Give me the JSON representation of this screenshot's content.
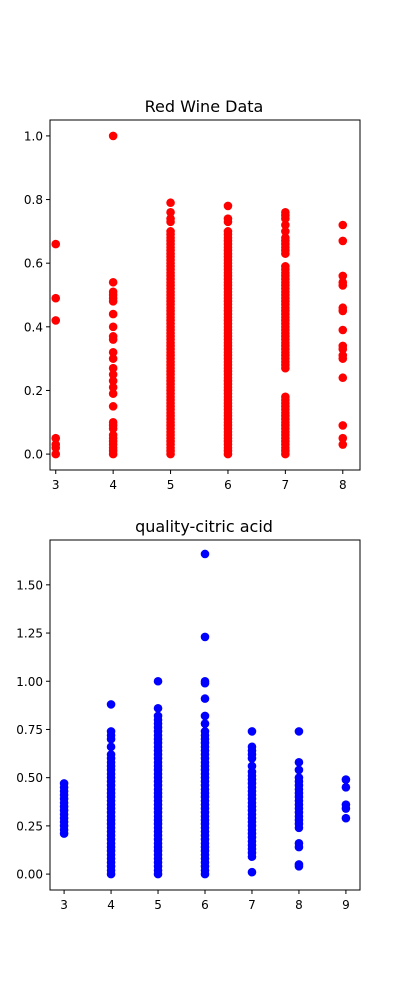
{
  "chart_data": [
    {
      "type": "scatter",
      "title": "Red Wine Data",
      "xlabel": "",
      "ylabel": "",
      "xlim": [
        2.9,
        8.3
      ],
      "ylim": [
        -0.05,
        1.05
      ],
      "xticks": [
        3,
        4,
        5,
        6,
        7,
        8
      ],
      "yticks": [
        0.0,
        0.2,
        0.4,
        0.6,
        0.8,
        1.0
      ],
      "ytick_labels": [
        "0.0",
        "0.2",
        "0.4",
        "0.6",
        "0.8",
        "1.0"
      ],
      "grid": false,
      "color": "#ff0000",
      "points": [
        {
          "x": 3,
          "ys": [
            0.0,
            0.02,
            0.03,
            0.05,
            0.42,
            0.49,
            0.66
          ]
        },
        {
          "x": 4,
          "ys": [
            0.0,
            0.01,
            0.02,
            0.03,
            0.04,
            0.05,
            0.06,
            0.08,
            0.09,
            0.1,
            0.15,
            0.19,
            0.21,
            0.23,
            0.25,
            0.27,
            0.3,
            0.32,
            0.36,
            0.37,
            0.4,
            0.44,
            0.48,
            0.49,
            0.5,
            0.51,
            0.54,
            1.0
          ]
        },
        {
          "x": 5,
          "ys": [
            0.0,
            0.01,
            0.02,
            0.03,
            0.04,
            0.05,
            0.06,
            0.07,
            0.08,
            0.09,
            0.1,
            0.11,
            0.12,
            0.13,
            0.14,
            0.15,
            0.16,
            0.17,
            0.18,
            0.19,
            0.2,
            0.21,
            0.22,
            0.23,
            0.24,
            0.25,
            0.26,
            0.27,
            0.28,
            0.29,
            0.3,
            0.31,
            0.32,
            0.33,
            0.34,
            0.35,
            0.36,
            0.37,
            0.38,
            0.39,
            0.4,
            0.41,
            0.42,
            0.43,
            0.44,
            0.45,
            0.46,
            0.47,
            0.48,
            0.49,
            0.5,
            0.51,
            0.52,
            0.53,
            0.54,
            0.55,
            0.56,
            0.57,
            0.58,
            0.59,
            0.6,
            0.61,
            0.62,
            0.63,
            0.64,
            0.65,
            0.66,
            0.67,
            0.68,
            0.69,
            0.7,
            0.73,
            0.74,
            0.76,
            0.79
          ]
        },
        {
          "x": 6,
          "ys": [
            0.0,
            0.01,
            0.02,
            0.03,
            0.04,
            0.05,
            0.06,
            0.07,
            0.08,
            0.09,
            0.1,
            0.11,
            0.12,
            0.13,
            0.14,
            0.15,
            0.16,
            0.17,
            0.18,
            0.19,
            0.2,
            0.21,
            0.22,
            0.23,
            0.24,
            0.25,
            0.26,
            0.27,
            0.28,
            0.29,
            0.3,
            0.31,
            0.32,
            0.33,
            0.34,
            0.35,
            0.36,
            0.37,
            0.38,
            0.39,
            0.4,
            0.41,
            0.42,
            0.43,
            0.44,
            0.45,
            0.46,
            0.47,
            0.48,
            0.49,
            0.5,
            0.51,
            0.52,
            0.53,
            0.54,
            0.55,
            0.56,
            0.57,
            0.58,
            0.59,
            0.6,
            0.61,
            0.62,
            0.63,
            0.64,
            0.65,
            0.66,
            0.67,
            0.68,
            0.69,
            0.7,
            0.73,
            0.74,
            0.78
          ]
        },
        {
          "x": 7,
          "ys": [
            0.0,
            0.01,
            0.02,
            0.03,
            0.04,
            0.05,
            0.06,
            0.07,
            0.08,
            0.09,
            0.1,
            0.11,
            0.12,
            0.13,
            0.14,
            0.15,
            0.16,
            0.17,
            0.18,
            0.27,
            0.28,
            0.29,
            0.3,
            0.31,
            0.32,
            0.33,
            0.34,
            0.35,
            0.36,
            0.37,
            0.38,
            0.39,
            0.4,
            0.41,
            0.42,
            0.43,
            0.44,
            0.45,
            0.46,
            0.47,
            0.48,
            0.49,
            0.5,
            0.51,
            0.52,
            0.53,
            0.54,
            0.55,
            0.56,
            0.57,
            0.58,
            0.59,
            0.63,
            0.64,
            0.65,
            0.66,
            0.67,
            0.68,
            0.7,
            0.72,
            0.74,
            0.75,
            0.76
          ]
        },
        {
          "x": 8,
          "ys": [
            0.03,
            0.05,
            0.09,
            0.24,
            0.3,
            0.31,
            0.33,
            0.34,
            0.39,
            0.45,
            0.46,
            0.53,
            0.54,
            0.56,
            0.67,
            0.72
          ]
        }
      ]
    },
    {
      "type": "scatter",
      "title": "quality-citric acid",
      "xlabel": "",
      "ylabel": "",
      "xlim": [
        2.7,
        9.3
      ],
      "ylim": [
        -0.0825,
        1.7325
      ],
      "xticks": [
        3,
        4,
        5,
        6,
        7,
        8,
        9
      ],
      "yticks": [
        0.0,
        0.25,
        0.5,
        0.75,
        1.0,
        1.25,
        1.5
      ],
      "ytick_labels": [
        "0.00",
        "0.25",
        "0.50",
        "0.75",
        "1.00",
        "1.25",
        "1.50"
      ],
      "grid": false,
      "color": "#0000ff",
      "points": [
        {
          "x": 3,
          "ys": [
            0.21,
            0.23,
            0.25,
            0.27,
            0.29,
            0.31,
            0.33,
            0.35,
            0.37,
            0.39,
            0.41,
            0.43,
            0.45,
            0.47
          ]
        },
        {
          "x": 4,
          "ys": [
            0.0,
            0.02,
            0.04,
            0.06,
            0.08,
            0.1,
            0.12,
            0.14,
            0.16,
            0.18,
            0.2,
            0.22,
            0.24,
            0.26,
            0.28,
            0.3,
            0.32,
            0.34,
            0.36,
            0.38,
            0.4,
            0.42,
            0.44,
            0.46,
            0.48,
            0.5,
            0.52,
            0.54,
            0.56,
            0.58,
            0.6,
            0.62,
            0.66,
            0.7,
            0.72,
            0.74,
            0.88
          ]
        },
        {
          "x": 5,
          "ys": [
            0.0,
            0.02,
            0.04,
            0.06,
            0.08,
            0.1,
            0.12,
            0.14,
            0.16,
            0.18,
            0.2,
            0.22,
            0.24,
            0.26,
            0.28,
            0.3,
            0.32,
            0.34,
            0.36,
            0.38,
            0.4,
            0.42,
            0.44,
            0.46,
            0.48,
            0.5,
            0.52,
            0.54,
            0.56,
            0.58,
            0.6,
            0.62,
            0.64,
            0.66,
            0.68,
            0.7,
            0.72,
            0.74,
            0.76,
            0.78,
            0.8,
            0.82,
            0.86,
            1.0
          ]
        },
        {
          "x": 6,
          "ys": [
            0.0,
            0.02,
            0.04,
            0.06,
            0.08,
            0.1,
            0.12,
            0.14,
            0.16,
            0.18,
            0.2,
            0.22,
            0.24,
            0.26,
            0.28,
            0.3,
            0.32,
            0.34,
            0.36,
            0.38,
            0.4,
            0.42,
            0.44,
            0.46,
            0.48,
            0.5,
            0.52,
            0.54,
            0.56,
            0.58,
            0.6,
            0.62,
            0.64,
            0.66,
            0.68,
            0.7,
            0.72,
            0.74,
            0.78,
            0.82,
            0.91,
            0.99,
            1.0,
            1.23,
            1.66
          ]
        },
        {
          "x": 7,
          "ys": [
            0.01,
            0.09,
            0.11,
            0.13,
            0.15,
            0.17,
            0.19,
            0.21,
            0.23,
            0.25,
            0.27,
            0.29,
            0.31,
            0.33,
            0.35,
            0.37,
            0.39,
            0.41,
            0.43,
            0.45,
            0.47,
            0.49,
            0.51,
            0.53,
            0.56,
            0.6,
            0.62,
            0.64,
            0.66,
            0.74
          ]
        },
        {
          "x": 8,
          "ys": [
            0.04,
            0.05,
            0.14,
            0.16,
            0.24,
            0.26,
            0.28,
            0.3,
            0.32,
            0.34,
            0.36,
            0.38,
            0.4,
            0.42,
            0.44,
            0.46,
            0.48,
            0.5,
            0.54,
            0.58,
            0.74
          ]
        },
        {
          "x": 9,
          "ys": [
            0.29,
            0.34,
            0.36,
            0.45,
            0.49
          ]
        }
      ]
    }
  ]
}
